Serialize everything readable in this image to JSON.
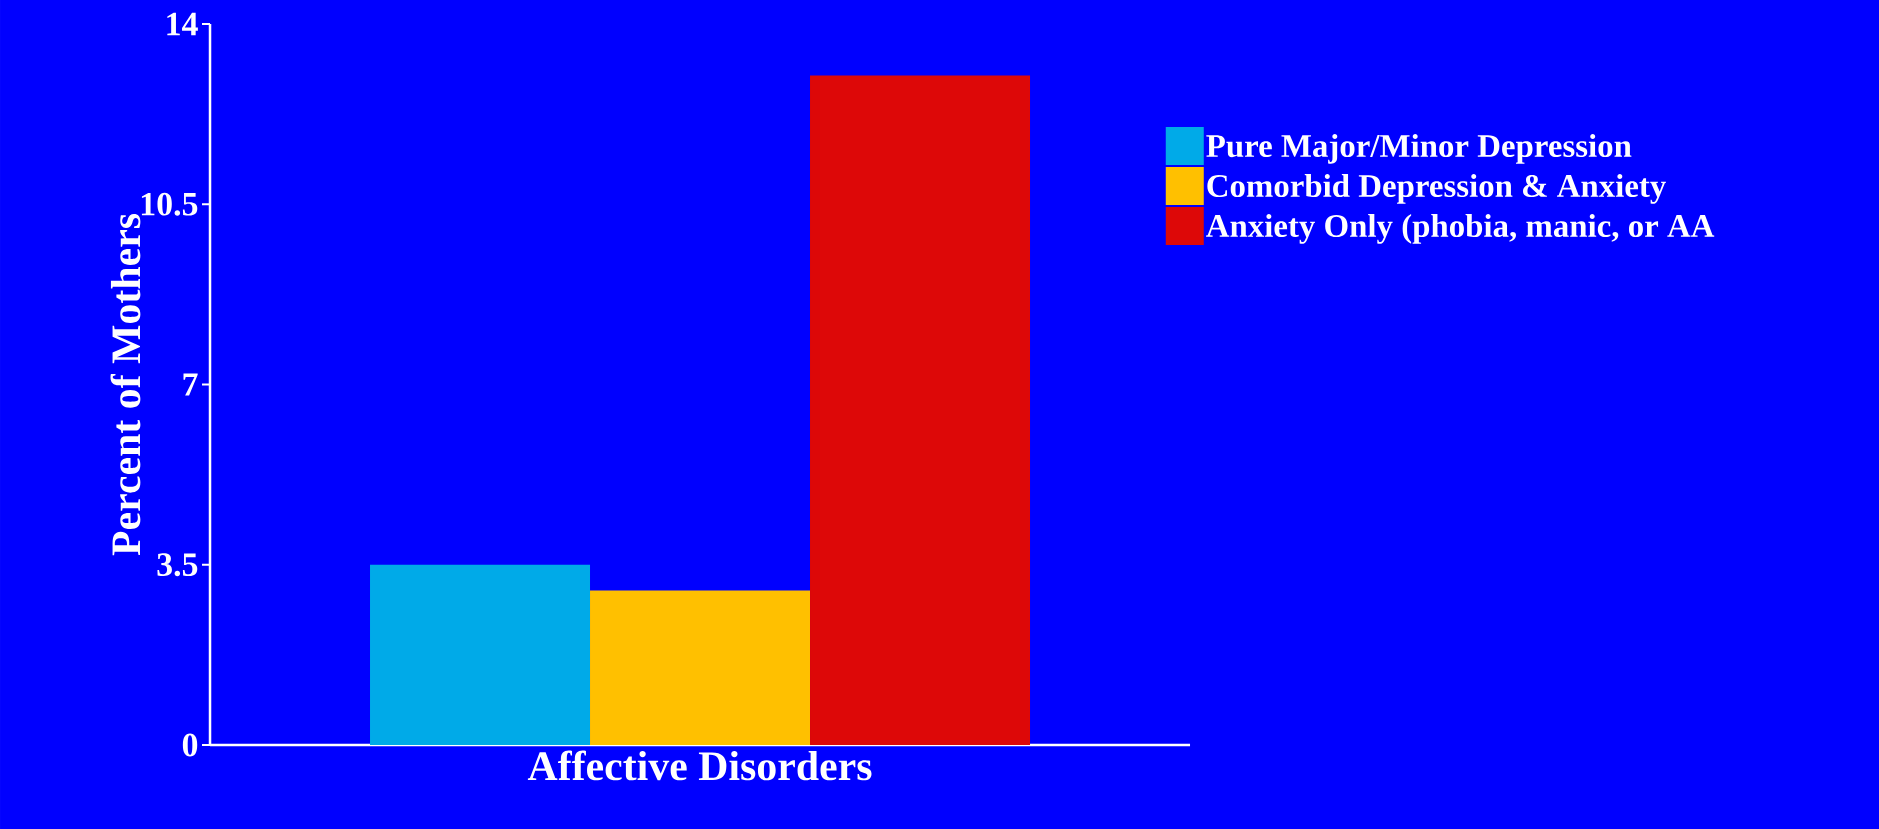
{
  "chart_data": {
    "type": "bar",
    "categories": [
      null
    ],
    "xlabel": "Affective Disorders",
    "ylabel": "Percent of Mothers",
    "ylim": [
      0,
      14
    ],
    "yticks": [
      0,
      3.5,
      7,
      10.5,
      14
    ],
    "legend": "right",
    "series": [
      {
        "name": "Pure Major/Minor Depression",
        "color": "#00aae8",
        "values": [
          3.5
        ]
      },
      {
        "name": "Comorbid Depression & Anxiety",
        "color": "#ffc000",
        "values": [
          3.0
        ]
      },
      {
        "name": "Anxiety Only (phobia, manic, or AA",
        "color": "#dd0808",
        "values": [
          13.0
        ]
      }
    ]
  }
}
